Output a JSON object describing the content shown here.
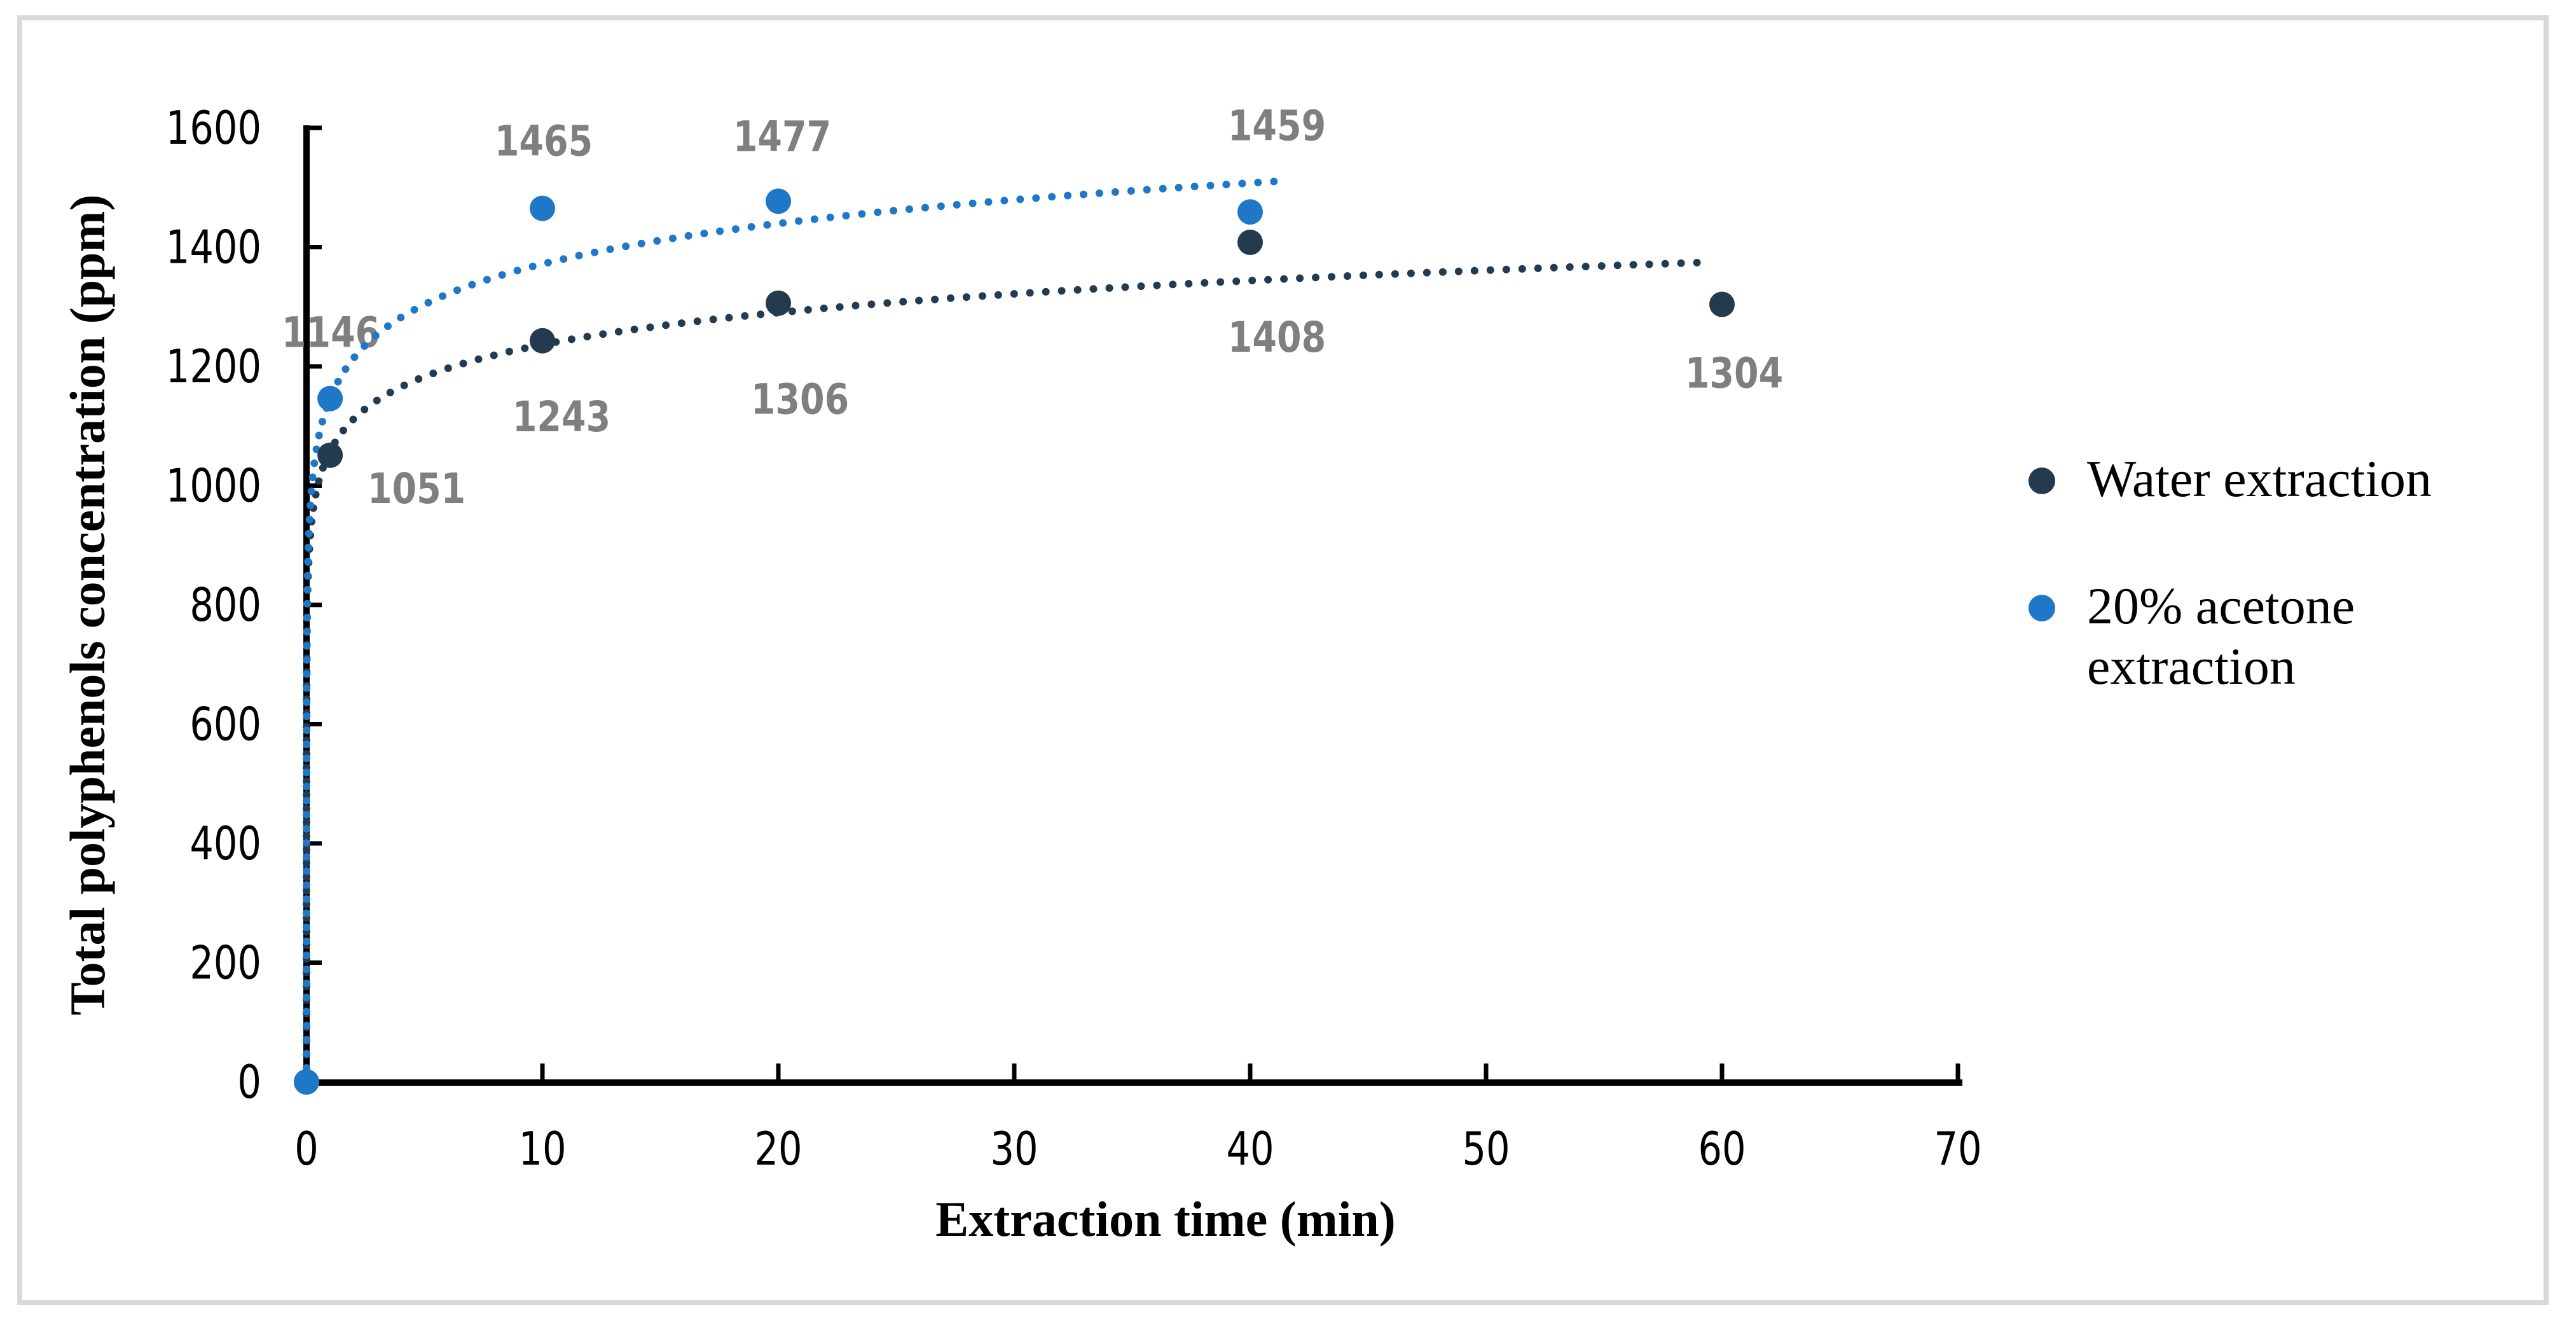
{
  "frame": {
    "border_color": "#D9D9D9"
  },
  "chart_data": {
    "type": "scatter",
    "title": "",
    "xlabel": "Extraction time (min)",
    "ylabel": "Total polyphenols concentration (ppm)",
    "x_axis": {
      "min": 0,
      "max": 70,
      "tick_step": 10,
      "ticks": [
        0,
        10,
        20,
        30,
        40,
        50,
        60,
        70
      ]
    },
    "y_axis": {
      "min": 0,
      "max": 1600,
      "tick_step": 200,
      "ticks": [
        0,
        200,
        400,
        600,
        800,
        1000,
        1200,
        1400,
        1600
      ]
    },
    "grid": false,
    "legend_position": "right",
    "label_color": "#7F7F7F",
    "axis_color": "#000000",
    "series": [
      {
        "name": "Water extraction",
        "color": "#243A4E",
        "marker": "circle",
        "points": [
          {
            "x": 0,
            "y": 0
          },
          {
            "x": 1,
            "y": 1051,
            "label": "1051",
            "label_offset": [
              136,
              52
            ]
          },
          {
            "x": 10,
            "y": 1243,
            "label": "1243",
            "label_offset": [
              30,
              119
            ]
          },
          {
            "x": 20,
            "y": 1306,
            "label": "1306",
            "label_offset": [
              34,
              151
            ]
          },
          {
            "x": 40,
            "y": 1408,
            "label": "1408",
            "label_offset": [
              42,
              149
            ]
          },
          {
            "x": 60,
            "y": 1304,
            "label": "1304",
            "label_offset": [
              19,
              108
            ]
          }
        ],
        "trendline": {
          "type": "logarithmic",
          "a": 77.5,
          "b": 1058,
          "t_end": 59.5,
          "style": "dotted"
        }
      },
      {
        "name": "20% acetone extraction",
        "color": "#1F78C7",
        "marker": "circle",
        "points": [
          {
            "x": 0,
            "y": 0
          },
          {
            "x": 1,
            "y": 1146,
            "label": "1146",
            "label_offset": [
              1,
              -104
            ]
          },
          {
            "x": 10,
            "y": 1465,
            "label": "1465",
            "label_offset": [
              2,
              -106
            ]
          },
          {
            "x": 20,
            "y": 1477,
            "label": "1477",
            "label_offset": [
              6,
              -102
            ]
          },
          {
            "x": 40,
            "y": 1459,
            "label": "1459",
            "label_offset": [
              42,
              -136
            ]
          }
        ],
        "trendline": {
          "type": "logarithmic",
          "a": 98,
          "b": 1146,
          "t_end": 41.5,
          "style": "dotted"
        }
      }
    ],
    "legend": [
      {
        "series": 0,
        "label_lines": [
          "Water extraction"
        ]
      },
      {
        "series": 1,
        "label_lines": [
          "20% acetone",
          "extraction"
        ]
      }
    ]
  }
}
